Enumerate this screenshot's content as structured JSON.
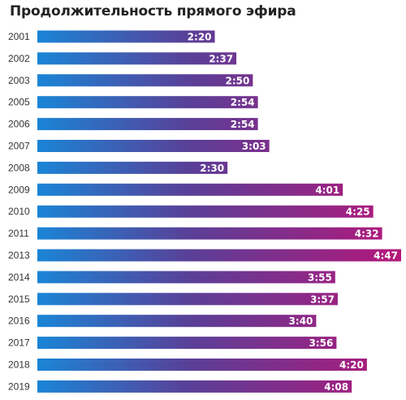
{
  "title": "Продолжительность прямого эфира",
  "colors": {
    "start": "#1a85d6",
    "mid": "#5a3f97",
    "end": "#b5177a"
  },
  "chart_data": {
    "type": "bar",
    "orientation": "horizontal",
    "title": "Продолжительность прямого эфира",
    "unit": "hours:minutes",
    "categories": [
      "2001",
      "2002",
      "2003",
      "2005",
      "2006",
      "2007",
      "2008",
      "2009",
      "2010",
      "2011",
      "2013",
      "2014",
      "2015",
      "2016",
      "2017",
      "2018",
      "2019"
    ],
    "labels": [
      "2:20",
      "2:37",
      "2:50",
      "2:54",
      "2:54",
      "3:03",
      "2:30",
      "4:01",
      "4:25",
      "4:32",
      "4:47",
      "3:55",
      "3:57",
      "3:40",
      "3:56",
      "4:20",
      "4:08"
    ],
    "values": [
      140,
      157,
      170,
      174,
      174,
      183,
      150,
      241,
      265,
      272,
      287,
      235,
      237,
      220,
      236,
      260,
      248
    ],
    "xlim": [
      0,
      287
    ],
    "grid": false,
    "legend": "none"
  }
}
